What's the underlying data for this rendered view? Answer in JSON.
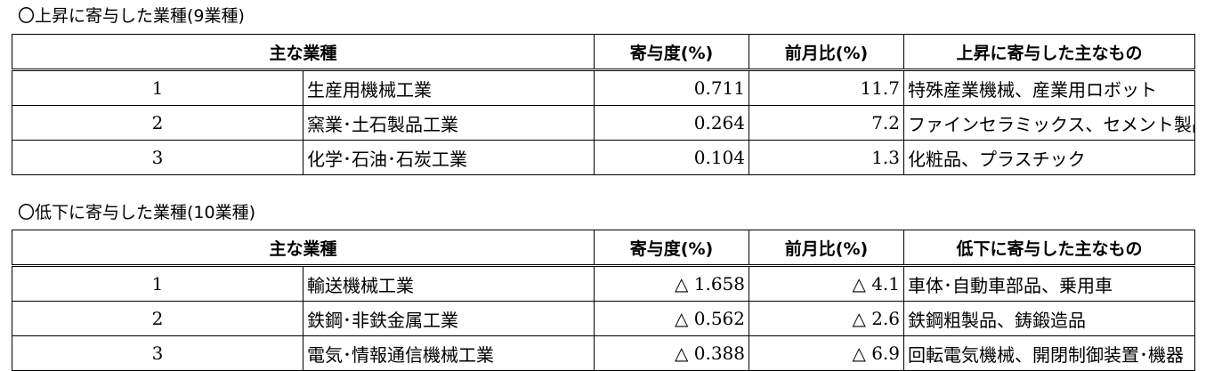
{
  "rising": {
    "title": "〇上昇に寄与した業種(9業種)",
    "headers": {
      "industry": "主な業種",
      "contribution": "寄与度(%)",
      "mom": "前月比(%)",
      "items": "上昇に寄与した主なもの"
    },
    "rows": [
      {
        "rank": "1",
        "industry": "生産用機械工業",
        "contribution": "0.711",
        "mom": "11.7",
        "items": "特殊産業機械、産業用ロボット"
      },
      {
        "rank": "2",
        "industry": "窯業･土石製品工業",
        "contribution": "0.264",
        "mom": "7.2",
        "items": "ファインセラミックス、セメント製品"
      },
      {
        "rank": "3",
        "industry": "化学･石油･石炭工業",
        "contribution": "0.104",
        "mom": "1.3",
        "items": "化粧品、プラスチック"
      }
    ]
  },
  "falling": {
    "title": "〇低下に寄与した業種(10業種)",
    "headers": {
      "industry": "主な業種",
      "contribution": "寄与度(%)",
      "mom": "前月比(%)",
      "items": "低下に寄与した主なもの"
    },
    "rows": [
      {
        "rank": "1",
        "industry": "輸送機械工業",
        "contribution": "△ 1.658",
        "mom": "△ 4.1",
        "items": "車体･自動車部品、乗用車"
      },
      {
        "rank": "2",
        "industry": "鉄鋼･非鉄金属工業",
        "contribution": "△ 0.562",
        "mom": "△ 2.6",
        "items": "鉄鋼粗製品、鋳鍛造品"
      },
      {
        "rank": "3",
        "industry": "電気･情報通信機械工業",
        "contribution": "△ 0.388",
        "mom": "△ 6.9",
        "items": "回転電気機械、開閉制御装置･機器"
      }
    ]
  }
}
